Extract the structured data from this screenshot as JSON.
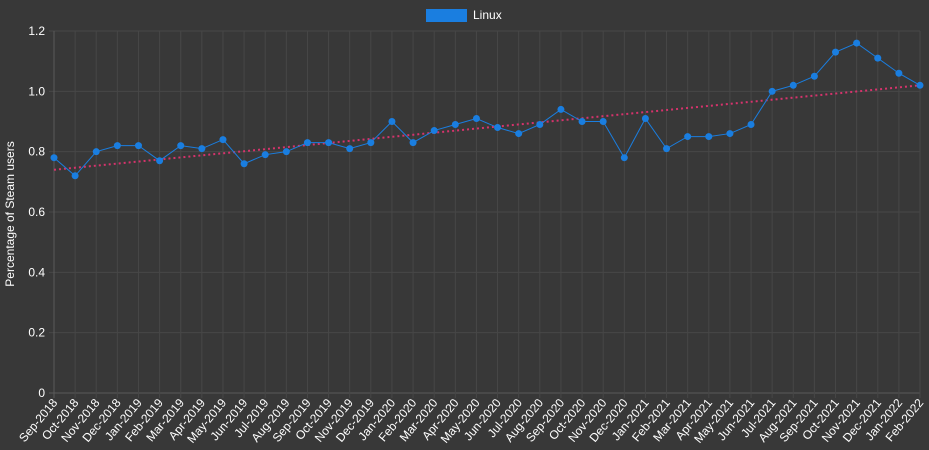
{
  "chart_data": {
    "type": "line",
    "ylabel": "Percentage of Steam users",
    "ylim": [
      0,
      1.2
    ],
    "yticks": [
      "0",
      "0.2",
      "0.4",
      "0.6",
      "0.8",
      "1.0",
      "1.2"
    ],
    "grid": true,
    "legend_position": "top-center",
    "categories": [
      "Sep-2018",
      "Oct-2018",
      "Nov-2018",
      "Dec-2018",
      "Jan-2019",
      "Feb-2019",
      "Mar-2019",
      "Apr-2019",
      "May-2019",
      "Jun-2019",
      "Jul-2019",
      "Aug-2019",
      "Sep-2019",
      "Oct-2019",
      "Nov-2019",
      "Dec-2019",
      "Jan-2020",
      "Feb-2020",
      "Mar-2020",
      "Apr-2020",
      "May-2020",
      "Jun-2020",
      "Jul-2020",
      "Aug-2020",
      "Sep-2020",
      "Oct-2020",
      "Nov-2020",
      "Dec-2020",
      "Jan-2021",
      "Feb-2021",
      "Mar-2021",
      "Apr-2021",
      "May-2021",
      "Jun-2021",
      "Jul-2021",
      "Aug-2021",
      "Sep-2021",
      "Oct-2021",
      "Nov-2021",
      "Dec-2021",
      "Jan-2022",
      "Feb-2022"
    ],
    "series": [
      {
        "name": "Linux",
        "color": "#1a7ee0",
        "values": [
          0.78,
          0.72,
          0.8,
          0.82,
          0.82,
          0.77,
          0.82,
          0.81,
          0.84,
          0.76,
          0.79,
          0.8,
          0.83,
          0.83,
          0.81,
          0.83,
          0.9,
          0.83,
          0.87,
          0.89,
          0.91,
          0.88,
          0.86,
          0.89,
          0.94,
          0.9,
          0.9,
          0.78,
          0.91,
          0.81,
          0.85,
          0.85,
          0.86,
          0.89,
          1.0,
          1.02,
          1.05,
          1.13,
          1.16,
          1.11,
          1.06,
          1.02
        ]
      }
    ],
    "trendline": {
      "color": "#d6336c",
      "start": 0.74,
      "end": 1.02
    }
  }
}
